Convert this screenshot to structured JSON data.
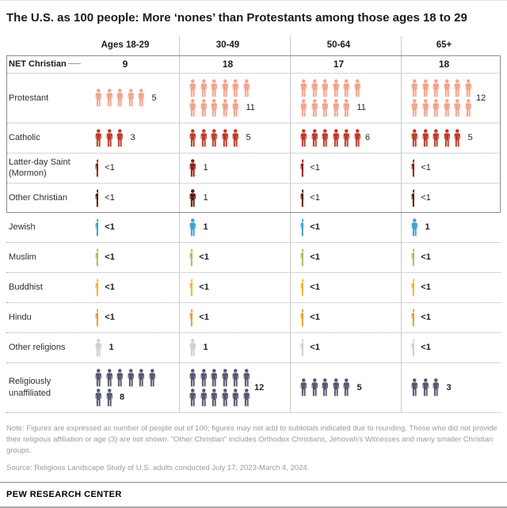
{
  "title": "The U.S. as 100 people: More ‘nones’ than Protestants among those ages 18 to 29",
  "chart_data": {
    "type": "pictogram-table",
    "unit": "people out of 100",
    "columns": [
      "Ages 18-29",
      "30-49",
      "50-64",
      "65+"
    ],
    "rows": [
      {
        "label": "NET Christian",
        "style": "numbers",
        "values": [
          9,
          18,
          17,
          18
        ],
        "display": [
          "9",
          "18",
          "17",
          "18"
        ],
        "bold": true,
        "in_box": true
      },
      {
        "label": "Protestant",
        "color": "#f0a48b",
        "values": [
          5,
          11,
          11,
          12
        ],
        "display": [
          "5",
          "11",
          "11",
          "12"
        ],
        "bold": false,
        "in_box": true
      },
      {
        "label": "Catholic",
        "color": "#bf3927",
        "values": [
          3,
          5,
          6,
          5
        ],
        "display": [
          "3",
          "5",
          "6",
          "5"
        ],
        "bold": false,
        "in_box": true
      },
      {
        "label": "Latter-day Saint (Mormon)",
        "color": "#8f2012",
        "values": [
          0.5,
          1,
          0.5,
          0.5
        ],
        "display": [
          "<1",
          "1",
          "<1",
          "<1"
        ],
        "bold": false,
        "in_box": true
      },
      {
        "label": "Other Christian",
        "color": "#5c1a0e",
        "values": [
          0.5,
          1,
          0.5,
          0.5
        ],
        "display": [
          "<1",
          "1",
          "<1",
          "<1"
        ],
        "bold": false,
        "in_box": true
      },
      {
        "label": "Jewish",
        "color": "#3ba2d0",
        "values": [
          0.5,
          1,
          0.5,
          1
        ],
        "display": [
          "<1",
          "1",
          "<1",
          "1"
        ],
        "bold": true,
        "in_box": false
      },
      {
        "label": "Muslim",
        "color": "#a5bf5b",
        "values": [
          0.5,
          0.5,
          0.5,
          0.5
        ],
        "display": [
          "<1",
          "<1",
          "<1",
          "<1"
        ],
        "bold": true,
        "in_box": false
      },
      {
        "label": "Buddhist",
        "color": "#f1b629",
        "values": [
          0.5,
          0.5,
          0.5,
          0.5
        ],
        "display": [
          "<1",
          "<1",
          "<1",
          "<1"
        ],
        "bold": true,
        "in_box": false
      },
      {
        "label": "Hindu",
        "color": "#e79e2e",
        "values": [
          0.5,
          0.5,
          0.5,
          0.5
        ],
        "display": [
          "<1",
          "<1",
          "<1",
          "<1"
        ],
        "bold": true,
        "in_box": false
      },
      {
        "label": "Other religions",
        "color": "#cfcfcf",
        "values": [
          1,
          1,
          0.5,
          0.5
        ],
        "display": [
          "1",
          "1",
          "<1",
          "<1"
        ],
        "bold": true,
        "in_box": false
      },
      {
        "label": "Religiously unaffiliated",
        "color": "#565670",
        "values": [
          8,
          12,
          5,
          3
        ],
        "display": [
          "8",
          "12",
          "5",
          "3"
        ],
        "bold": true,
        "in_box": false
      }
    ]
  },
  "note": "Note: Figures are expressed as number of people out of 100; figures may not add to subtotals indicated due to rounding. Those who did not provide their religious affiliation or age (3) are not shown. “Other Christian” includes Orthodox Christians, Jehovah’s Witnesses and many smaller Christian groups.",
  "source": "Source: Religious Landscape Study of U.S. adults conducted July 17, 2023-March 4, 2024.",
  "footer": "PEW RESEARCH CENTER"
}
